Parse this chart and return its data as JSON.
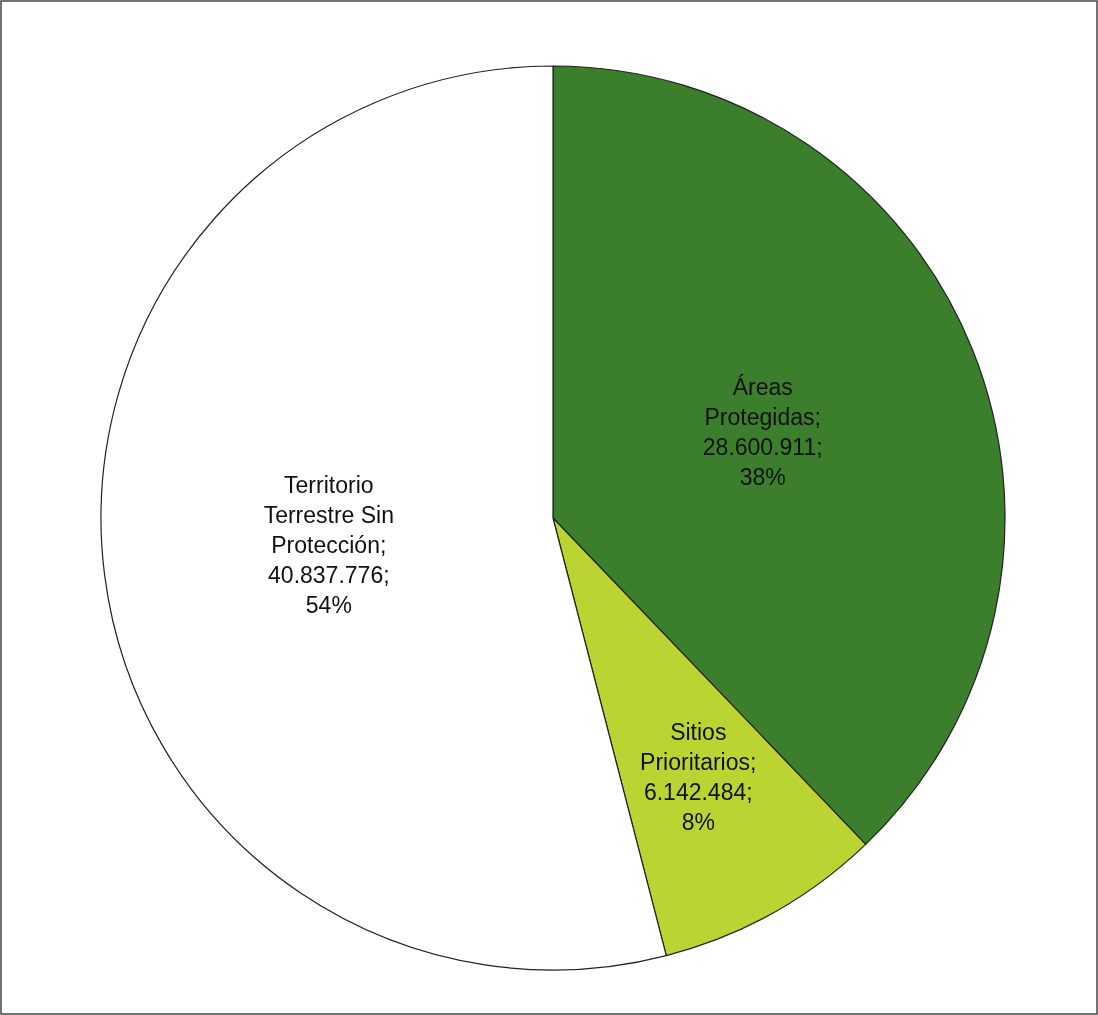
{
  "chart_data": {
    "type": "pie",
    "categories": [
      "Áreas Protegidas",
      "Sitios Prioritarios",
      "Territorio Terrestre Sin Protección"
    ],
    "values": [
      28600911,
      6142484,
      40837776
    ],
    "value_labels": [
      "; 28.600.911; 38%",
      "; 6.142.484; 8%",
      "; 40.837.776; 54%"
    ],
    "colors": [
      "#3b7f2c",
      "#bcd431",
      "#ffffff"
    ]
  }
}
